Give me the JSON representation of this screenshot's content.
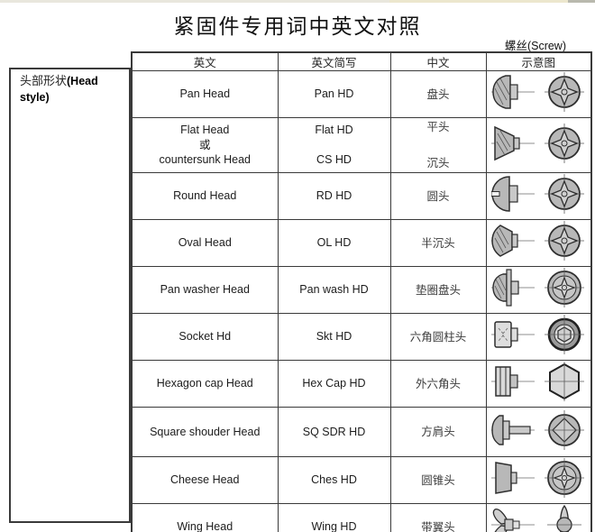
{
  "page": {
    "title": "紧固件专用词中英文对照",
    "screw_label_zh": "螺丝",
    "screw_label_en": "(Screw)",
    "row_group_label_zh": "头部形状",
    "row_group_label_en": "(Head style)"
  },
  "table": {
    "columns": [
      "英文",
      "英文简写",
      "中文",
      "示意图"
    ],
    "rows": [
      {
        "en": "Pan Head",
        "abbr": "Pan HD",
        "cn": "盘头",
        "icon_side": "pan-head-side-icon",
        "icon_top": "phillips-recess-top-icon"
      },
      {
        "en": [
          "Flat Head",
          "或",
          "countersunk Head"
        ],
        "abbr": [
          "Flat HD",
          "",
          "CS HD"
        ],
        "cn": [
          "平头",
          "",
          "沉头"
        ],
        "icon_side": "flat-head-side-icon",
        "icon_top": "phillips-recess-top-icon"
      },
      {
        "en": "Round Head",
        "abbr": "RD HD",
        "cn": "圆头",
        "icon_side": "round-head-side-icon",
        "icon_top": "phillips-recess-top-icon"
      },
      {
        "en": "Oval Head",
        "abbr": "OL HD",
        "cn": "半沉头",
        "icon_side": "oval-head-side-icon",
        "icon_top": "phillips-recess-top-icon"
      },
      {
        "en": "Pan washer Head",
        "abbr": "Pan wash HD",
        "cn": "垫圈盘头",
        "icon_side": "pan-washer-head-side-icon",
        "icon_top": "phillips-washer-top-icon"
      },
      {
        "en": "Socket Hd",
        "abbr": "Skt HD",
        "cn": "六角圆柱头",
        "icon_side": "socket-head-side-icon",
        "icon_top": "hex-socket-top-icon"
      },
      {
        "en": "Hexagon cap Head",
        "abbr": "Hex Cap HD",
        "cn": "外六角头",
        "icon_side": "hex-cap-head-side-icon",
        "icon_top": "hex-head-top-icon"
      },
      {
        "en": "Square shouder Head",
        "abbr": "SQ SDR HD",
        "cn": "方肩头",
        "icon_side": "square-shoulder-head-side-icon",
        "icon_top": "square-recess-top-icon"
      },
      {
        "en": "Cheese Head",
        "abbr": "Ches HD",
        "cn": "圆锥头",
        "icon_side": "cheese-head-side-icon",
        "icon_top": "phillips-washer-top-icon"
      },
      {
        "en": "Wing Head",
        "abbr": "Wing HD",
        "cn": "带翼头",
        "icon_side": "wing-head-side-icon",
        "icon_top": "wing-head-top-icon"
      }
    ]
  }
}
